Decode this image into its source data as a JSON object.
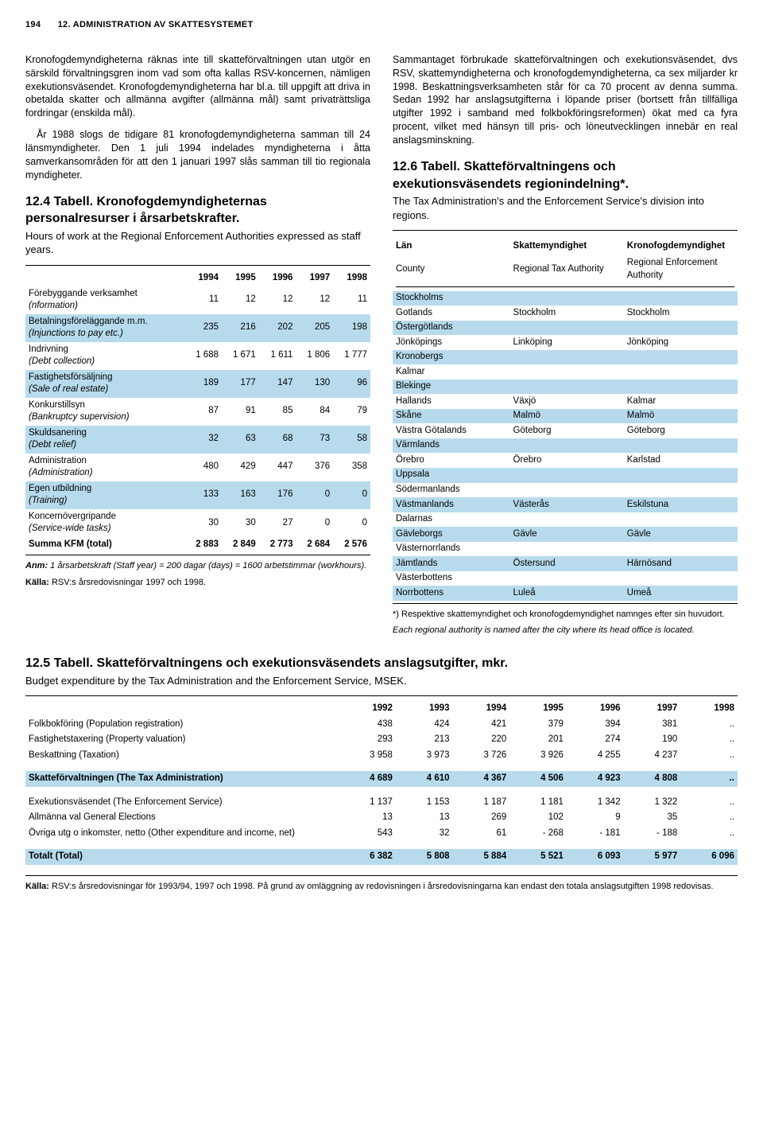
{
  "header": {
    "page_number": "194",
    "title": "12. ADMINISTRATION AV SKATTESYSTEMET"
  },
  "left": {
    "p1": "Kronofogdemyndigheterna räknas inte till skatteförvaltningen utan utgör en särskild förvaltningsgren inom vad som ofta kallas RSV-koncernen, nämligen exekutionsväsendet. Kronofogdemyndigheterna har bl.a. till uppgift att driva in obetalda skatter och allmänna avgifter (allmänna mål) samt privaträttsliga fordringar (enskilda mål).",
    "p2": "År 1988 slogs de tidigare 81 kronofogdemyndigheterna samman till 24 länsmyndigheter. Den 1 juli 1994 indelades myndigheterna i åtta samverkansområden för att den 1 januari 1997 slås samman till tio regionala myndigheter.",
    "t124_title": "12.4 Tabell. Kronofogdemyndigheternas personalresurser i årsarbetskrafter.",
    "t124_sub": "Hours of work at the Regional Enforcement Authorities expressed as staff years.",
    "t124": {
      "years": [
        "1994",
        "1995",
        "1996",
        "1997",
        "1998"
      ],
      "rows": [
        {
          "label_sv": "Förebyggande verksamhet",
          "label_en": "(nformation)",
          "v": [
            "11",
            "12",
            "12",
            "12",
            "11"
          ],
          "striped": false
        },
        {
          "label_sv": "Betalningsföreläggande m.m.",
          "label_en": "(Injunctions to pay etc.)",
          "v": [
            "235",
            "216",
            "202",
            "205",
            "198"
          ],
          "striped": true
        },
        {
          "label_sv": "Indrivning",
          "label_en": "(Debt collection)",
          "v": [
            "1 688",
            "1 671",
            "1 611",
            "1 806",
            "1 777"
          ],
          "striped": false
        },
        {
          "label_sv": "Fastighetsförsäljning",
          "label_en": "(Sale of real estate)",
          "v": [
            "189",
            "177",
            "147",
            "130",
            "96"
          ],
          "striped": true
        },
        {
          "label_sv": "Konkurstillsyn",
          "label_en": "(Bankruptcy supervision)",
          "v": [
            "87",
            "91",
            "85",
            "84",
            "79"
          ],
          "striped": false
        },
        {
          "label_sv": "Skuldsanering",
          "label_en": "(Debt relief)",
          "v": [
            "32",
            "63",
            "68",
            "73",
            "58"
          ],
          "striped": true
        },
        {
          "label_sv": "Administration",
          "label_en": "(Administration)",
          "v": [
            "480",
            "429",
            "447",
            "376",
            "358"
          ],
          "striped": false
        },
        {
          "label_sv": "Egen utbildning",
          "label_en": "(Training)",
          "v": [
            "133",
            "163",
            "176",
            "0",
            "0"
          ],
          "striped": true
        },
        {
          "label_sv": "Koncernövergripande",
          "label_en": "(Service-wide tasks)",
          "v": [
            "30",
            "30",
            "27",
            "0",
            "0"
          ],
          "striped": false
        }
      ],
      "total": {
        "label": "Summa KFM (total)",
        "v": [
          "2 883",
          "2 849",
          "2 773",
          "2 684",
          "2 576"
        ]
      }
    },
    "t124_note1_label": "Anm:",
    "t124_note1": " 1 årsarbetskraft (Staff year) = 200 dagar (days) = 1600 arbetstimmar (workhours).",
    "t124_note2_label": "Källa:",
    "t124_note2": " RSV:s årsredovisningar 1997 och 1998."
  },
  "right": {
    "p1": "Sammantaget förbrukade skatteförvaltningen och exekutionsväsendet, dvs RSV, skattemyndigheterna och kronofogdemyndigheterna, ca sex miljarder kr 1998. Beskattningsverksamheten står för ca 70 procent av denna summa. Sedan 1992 har anslagsutgifterna i löpande priser (bortsett från tillfälliga utgifter 1992 i samband med folkbokföringsreformen) ökat med ca fyra procent, vilket med hänsyn till pris- och löneutvecklingen innebär en real anslagsminskning.",
    "t126_title": "12.6 Tabell. Skatteförvaltningens och exekutionsväsendets regionindelning*.",
    "t126_sub": "The Tax Administration's and the Enforcement Service's division into regions.",
    "t126_headers": {
      "c1_sv": "Län",
      "c2_sv": "Skattemyndighet",
      "c3_sv": "Kronofogdemyndighet",
      "c1_en": "County",
      "c2_en": "Regional Tax Authority",
      "c3_en": "Regional Enforcement Authority"
    },
    "t126_rows": [
      {
        "lan": "Stockholms",
        "sm": "",
        "kfm": "",
        "striped": true
      },
      {
        "lan": "Gotlands",
        "sm": "Stockholm",
        "kfm": "Stockholm",
        "striped": false
      },
      {
        "lan": "Östergötlands",
        "sm": "",
        "kfm": "",
        "striped": true
      },
      {
        "lan": "Jönköpings",
        "sm": "Linköping",
        "kfm": "Jönköping",
        "striped": false
      },
      {
        "lan": "Kronobergs",
        "sm": "",
        "kfm": "",
        "striped": true
      },
      {
        "lan": "Kalmar",
        "sm": "",
        "kfm": "",
        "striped": false
      },
      {
        "lan": "Blekinge",
        "sm": "",
        "kfm": "",
        "striped": true
      },
      {
        "lan": "Hallands",
        "sm": "Växjö",
        "kfm": "Kalmar",
        "striped": false
      },
      {
        "lan": "Skåne",
        "sm": "Malmö",
        "kfm": "Malmö",
        "striped": true
      },
      {
        "lan": "Västra Götalands",
        "sm": "Göteborg",
        "kfm": "Göteborg",
        "striped": false
      },
      {
        "lan": "Värmlands",
        "sm": "",
        "kfm": "",
        "striped": true
      },
      {
        "lan": "Örebro",
        "sm": "Örebro",
        "kfm": "Karlstad",
        "striped": false
      },
      {
        "lan": "Uppsala",
        "sm": "",
        "kfm": "",
        "striped": true
      },
      {
        "lan": "Södermanlands",
        "sm": "",
        "kfm": "",
        "striped": false
      },
      {
        "lan": "Västmanlands",
        "sm": "Västerås",
        "kfm": "Eskilstuna",
        "striped": true
      },
      {
        "lan": "Dalarnas",
        "sm": "",
        "kfm": "",
        "striped": false
      },
      {
        "lan": "Gävleborgs",
        "sm": "Gävle",
        "kfm": "Gävle",
        "striped": true
      },
      {
        "lan": "Västernorrlands",
        "sm": "",
        "kfm": "",
        "striped": false
      },
      {
        "lan": "Jämtlands",
        "sm": "Östersund",
        "kfm": "Härnösand",
        "striped": true
      },
      {
        "lan": "Västerbottens",
        "sm": "",
        "kfm": "",
        "striped": false
      },
      {
        "lan": "Norrbottens",
        "sm": "Luleå",
        "kfm": "Umeå",
        "striped": true
      }
    ],
    "t126_note1": "*) Respektive skattemyndighet och kronofogdemyndighet namnges efter sin huvudort.",
    "t126_note2": "Each regional authority is named after the city where its head office is located."
  },
  "t125": {
    "title": "12.5 Tabell. Skatteförvaltningens och exekutionsväsendets anslagsutgifter, mkr.",
    "sub": "Budget expenditure by the Tax Administration and the Enforcement Service, MSEK.",
    "years": [
      "1992",
      "1993",
      "1994",
      "1995",
      "1996",
      "1997",
      "1998"
    ],
    "rows": [
      {
        "label": "Folkbokföring (Population registration)",
        "v": [
          "438",
          "424",
          "421",
          "379",
          "394",
          "381",
          ".."
        ],
        "striped": false
      },
      {
        "label": "Fastighetstaxering (Property valuation)",
        "v": [
          "293",
          "213",
          "220",
          "201",
          "274",
          "190",
          ".."
        ],
        "striped": false
      },
      {
        "label": "Beskattning (Taxation)",
        "v": [
          "3 958",
          "3 973",
          "3 726",
          "3 926",
          "4 255",
          "4 237",
          ".."
        ],
        "striped": false
      },
      {
        "label": "Skatteförvaltningen (The Tax Administration)",
        "v": [
          "4 689",
          "4 610",
          "4 367",
          "4 506",
          "4 923",
          "4 808",
          ".."
        ],
        "striped": true,
        "bold": true
      },
      {
        "label": "Exekutionsväsendet (The Enforcement Service)",
        "v": [
          "1 137",
          "1 153",
          "1 187",
          "1 181",
          "1 342",
          "1 322",
          ".."
        ],
        "striped": false
      },
      {
        "label": "Allmänna val General Elections",
        "v": [
          "13",
          "13",
          "269",
          "102",
          "9",
          "35",
          ".."
        ],
        "striped": false
      },
      {
        "label": "Övriga utg o inkomster, netto (Other expenditure and income, net)",
        "v": [
          "543",
          "32",
          "61",
          "- 268",
          "- 181",
          "- 188",
          ".."
        ],
        "striped": false
      },
      {
        "label": "Totalt (Total)",
        "v": [
          "6 382",
          "5 808",
          "5 884",
          "5 521",
          "6 093",
          "5 977",
          "6 096"
        ],
        "striped": true,
        "bold": true
      }
    ],
    "note_label": "Källa:",
    "note": " RSV:s årsredovisningar för 1993/94, 1997 och 1998. På grund av omläggning av redovisningen i årsredovisningarna kan endast den totala anslagsutgiften 1998 redovisas."
  }
}
